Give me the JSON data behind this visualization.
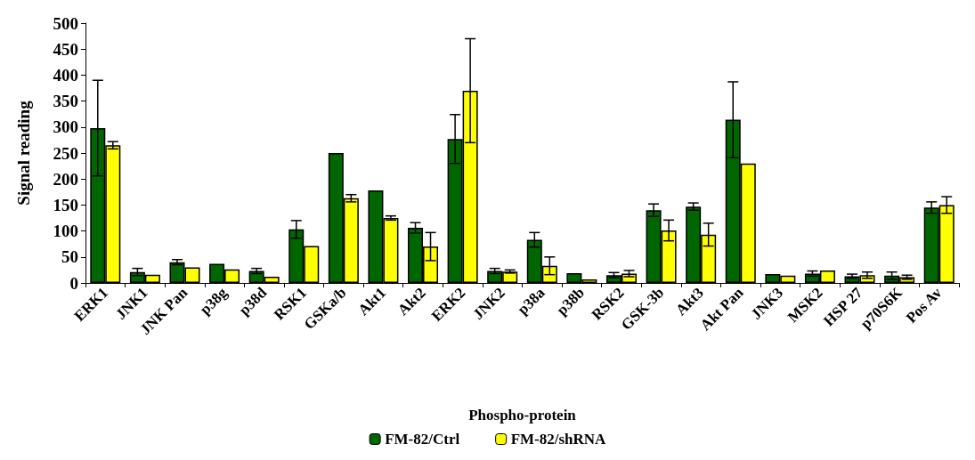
{
  "chart_data": {
    "type": "bar",
    "xlabel": "Phospho-protein",
    "ylabel": "Signal reading",
    "categories": [
      "ERK1",
      "JNK1",
      "JNK Pan",
      "p38g",
      "p38d",
      "RSK1",
      "GSKa/b",
      "Akt1",
      "Akt2",
      "ERK2",
      "JNK2",
      "p38a",
      "p38b",
      "RSK2",
      "GSK-3b",
      "Akt3",
      "Akt Pan",
      "JNK3",
      "MSK2",
      "HSP 27",
      "p70S6K",
      "Pos Av"
    ],
    "series": [
      {
        "name": "FM-82/Ctrl",
        "color": "#006600",
        "values": [
          298,
          21,
          40,
          37,
          23,
          103,
          250,
          178,
          106,
          277,
          23,
          83,
          19,
          15,
          140,
          147,
          314,
          17,
          18,
          13,
          14,
          145
        ],
        "errors": [
          92,
          7,
          5,
          null,
          5,
          17,
          null,
          null,
          10,
          47,
          5,
          14,
          null,
          5,
          12,
          7,
          73,
          null,
          5,
          4,
          7,
          11
        ]
      },
      {
        "name": "FM-82/shRNA",
        "color": "#ffff00",
        "values": [
          265,
          16,
          30,
          26,
          12,
          71,
          163,
          125,
          70,
          370,
          22,
          33,
          7,
          18,
          101,
          93,
          230,
          14,
          24,
          15,
          11,
          150
        ],
        "errors": [
          7,
          null,
          null,
          null,
          null,
          null,
          7,
          4,
          27,
          100,
          3,
          17,
          null,
          6,
          20,
          22,
          null,
          null,
          null,
          6,
          4,
          16
        ]
      }
    ],
    "ylim": [
      0,
      500
    ],
    "yticks": [
      0,
      50,
      100,
      150,
      200,
      250,
      300,
      350,
      400,
      450,
      500
    ],
    "grid": false,
    "legend": "bottom"
  }
}
